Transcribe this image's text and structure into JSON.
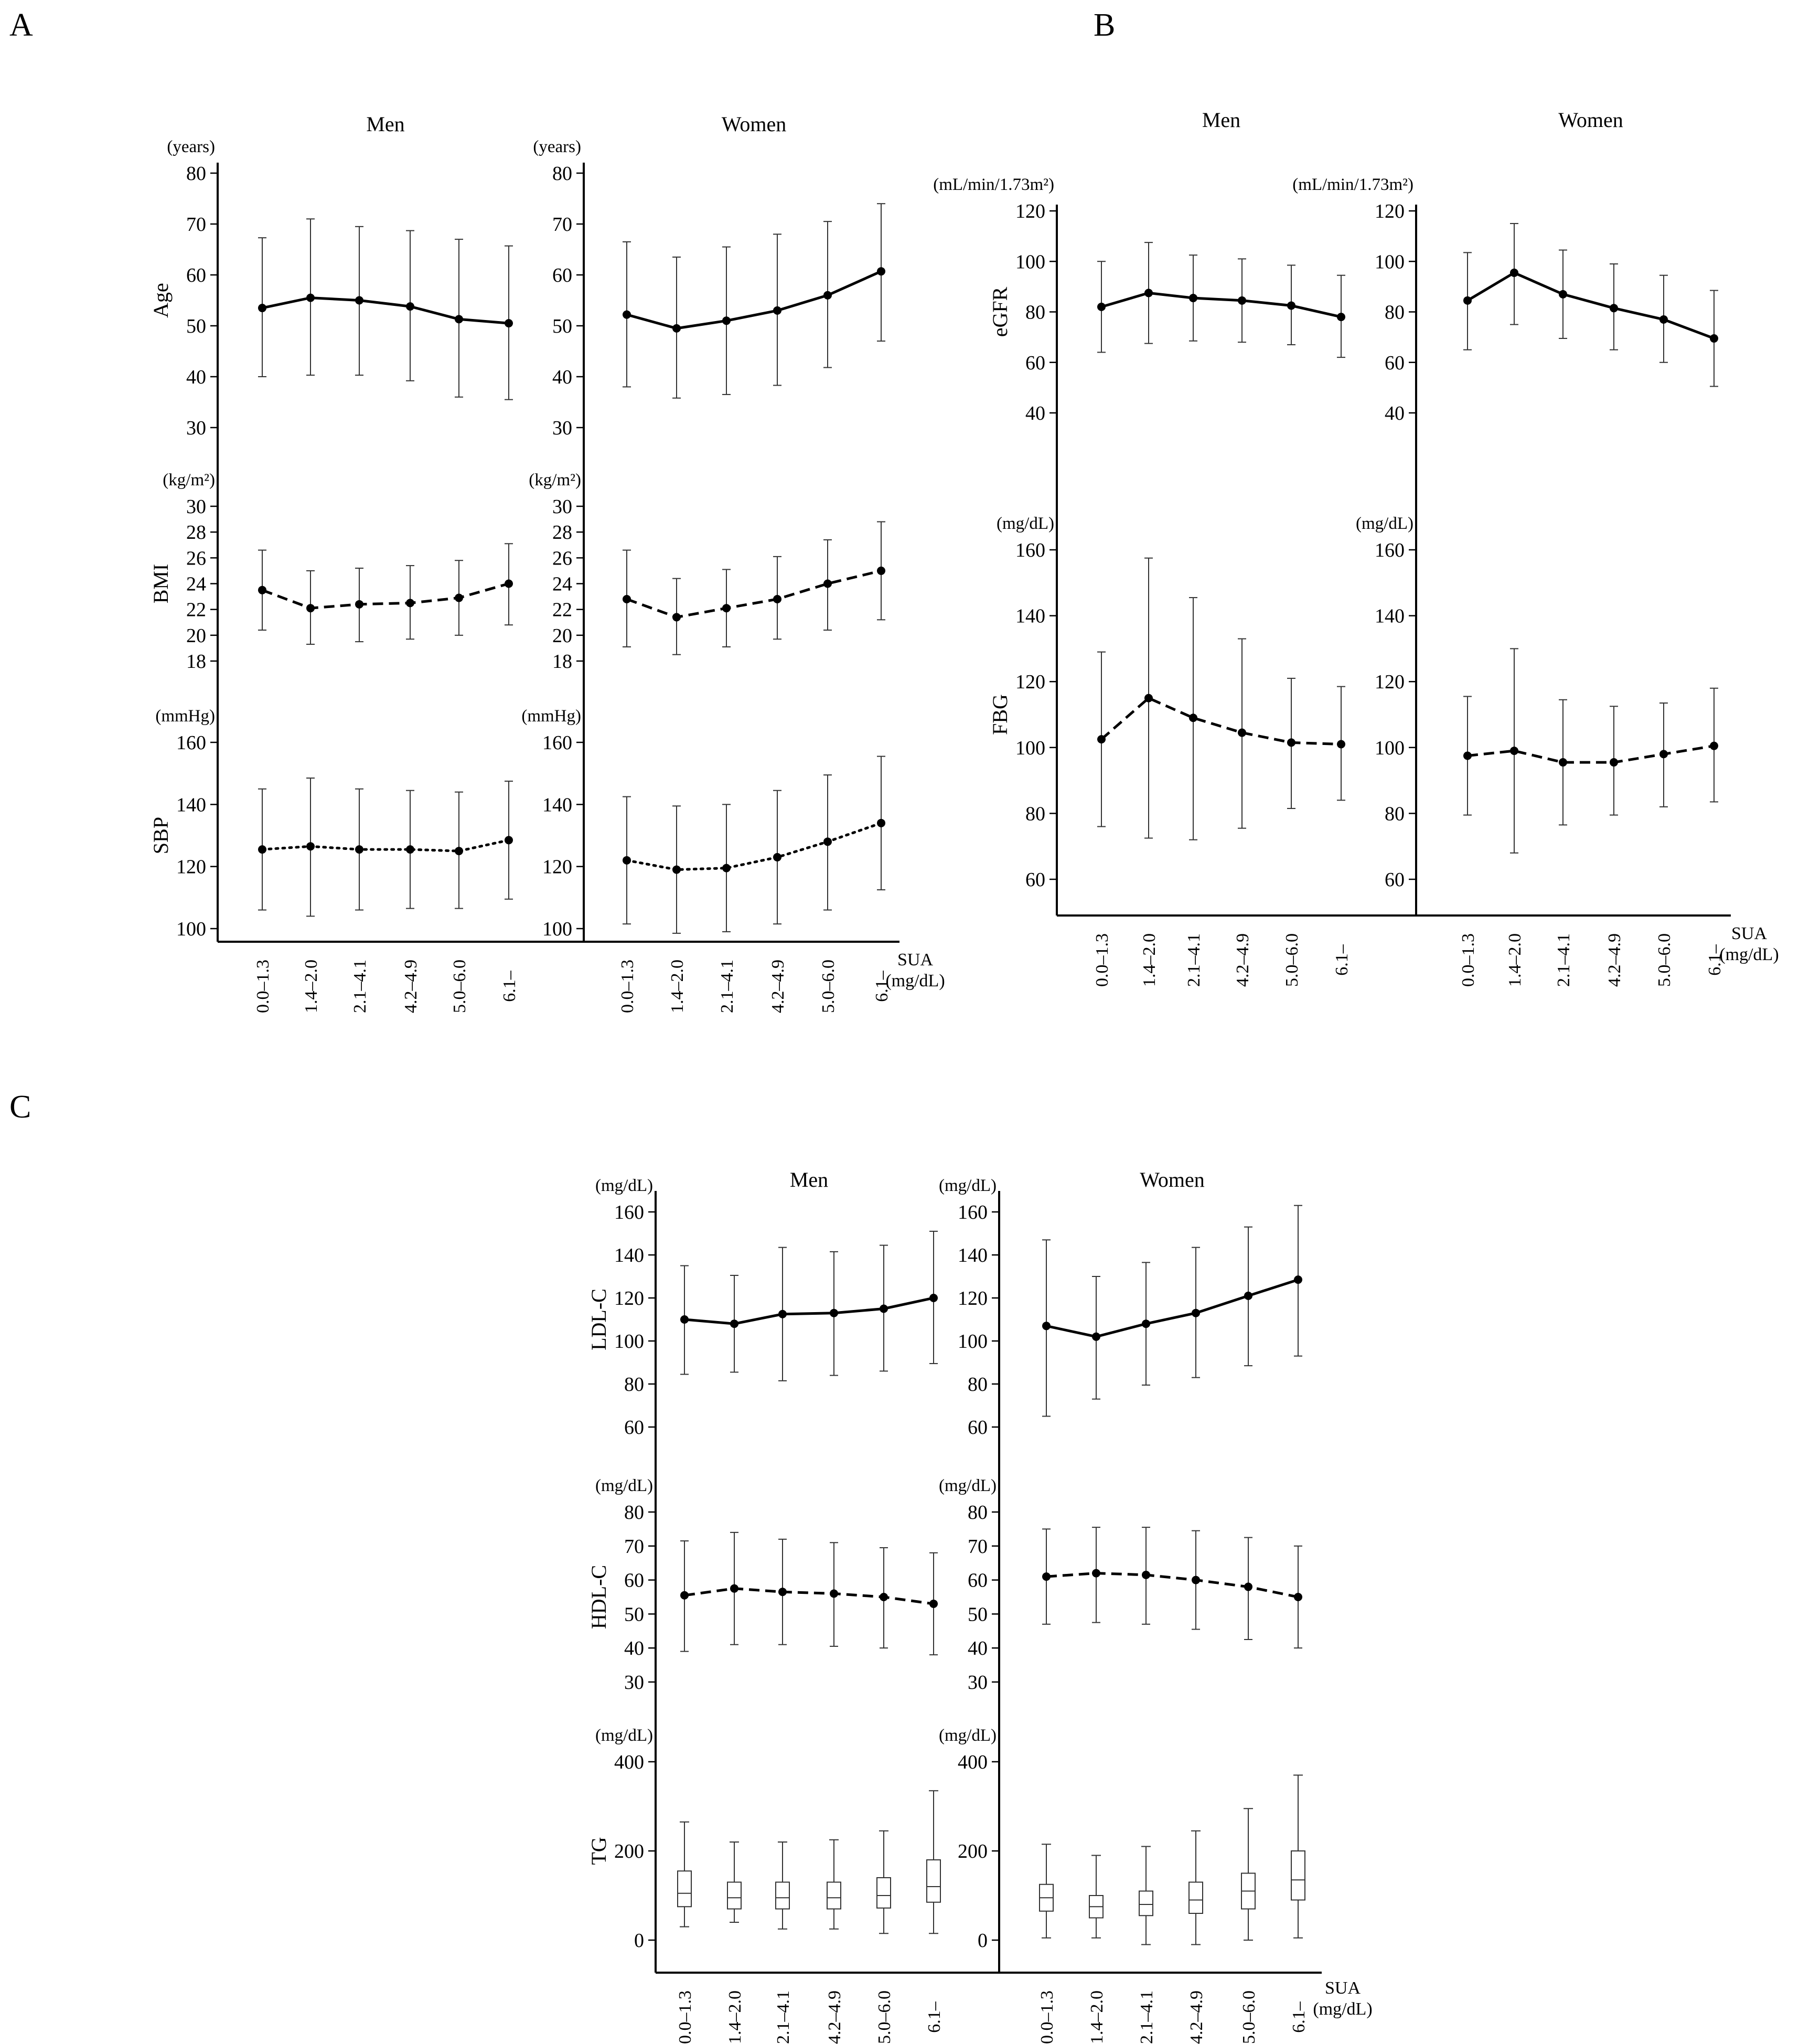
{
  "figure": {
    "panel_labels": [
      "A",
      "B",
      "C"
    ],
    "group_labels": [
      "Men",
      "Women"
    ],
    "x_categories": [
      "0.0–1.3",
      "1.4–2.0",
      "2.1–4.1",
      "4.2–4.9",
      "5.0–6.0",
      "6.1–"
    ],
    "x_axis_label_line1": "SUA",
    "x_axis_label_line2": "(mg/dL)"
  },
  "chart_data": [
    {
      "id": "age",
      "panel": "A",
      "type": "line",
      "variable": "Age",
      "unit": "(years)",
      "ylim": [
        30,
        80
      ],
      "yticks": [
        30,
        40,
        50,
        60,
        70,
        80
      ],
      "line_style": "solid",
      "series": [
        {
          "name": "Men",
          "values": [
            53.5,
            55.5,
            55,
            53.8,
            51.3,
            50.5
          ],
          "lower": [
            40,
            40.3,
            40.3,
            39.2,
            36,
            35.5
          ],
          "upper": [
            67.3,
            71,
            69.5,
            68.7,
            67,
            65.7
          ]
        },
        {
          "name": "Women",
          "values": [
            52.2,
            49.5,
            51,
            53,
            56,
            60.7
          ],
          "lower": [
            38,
            35.8,
            36.5,
            38.3,
            41.8,
            47
          ],
          "upper": [
            66.5,
            63.5,
            65.5,
            68,
            70.5,
            74
          ]
        }
      ]
    },
    {
      "id": "bmi",
      "panel": "A",
      "type": "line",
      "variable": "BMI",
      "unit": "(kg/m²)",
      "ylim": [
        18,
        30
      ],
      "yticks": [
        18,
        20,
        22,
        24,
        26,
        28,
        30
      ],
      "line_style": "dashed",
      "series": [
        {
          "name": "Men",
          "values": [
            23.5,
            22.1,
            22.4,
            22.5,
            22.9,
            24
          ],
          "lower": [
            20.4,
            19.3,
            19.5,
            19.7,
            20,
            20.8
          ],
          "upper": [
            26.6,
            25,
            25.2,
            25.4,
            25.8,
            27.1
          ]
        },
        {
          "name": "Women",
          "values": [
            22.8,
            21.4,
            22.1,
            22.8,
            24,
            25
          ],
          "lower": [
            19.1,
            18.5,
            19.1,
            19.7,
            20.4,
            21.2
          ],
          "upper": [
            26.6,
            24.4,
            25.1,
            26.1,
            27.4,
            28.8
          ]
        }
      ]
    },
    {
      "id": "sbp",
      "panel": "A",
      "type": "line",
      "variable": "SBP",
      "unit": "(mmHg)",
      "ylim": [
        90,
        160
      ],
      "yticks": [
        100,
        120,
        140,
        160
      ],
      "line_style": "dotted",
      "series": [
        {
          "name": "Men",
          "values": [
            125.5,
            126.5,
            125.5,
            125.5,
            125,
            128.5
          ],
          "lower": [
            106,
            104,
            106,
            106.5,
            106.5,
            109.5
          ],
          "upper": [
            145,
            148.5,
            145,
            144.5,
            144,
            147.5
          ]
        },
        {
          "name": "Women",
          "values": [
            122,
            119,
            119.5,
            123,
            128,
            134
          ],
          "lower": [
            101.5,
            98.5,
            99,
            101.5,
            106,
            112.5
          ],
          "upper": [
            142.5,
            139.5,
            140,
            144.5,
            149.5,
            155.5
          ]
        }
      ]
    },
    {
      "id": "egfr",
      "panel": "B",
      "type": "line",
      "variable": "eGFR",
      "unit": "(mL/min/1.73m²)",
      "ylim": [
        40,
        120
      ],
      "yticks": [
        40,
        60,
        80,
        100,
        120
      ],
      "line_style": "solid",
      "series": [
        {
          "name": "Men",
          "values": [
            82,
            87.5,
            85.5,
            84.5,
            82.5,
            78
          ],
          "lower": [
            64,
            67.5,
            68.5,
            68,
            67,
            62
          ],
          "upper": [
            100,
            107.5,
            102.5,
            101,
            98.5,
            94.5
          ]
        },
        {
          "name": "Women",
          "values": [
            84.5,
            95.5,
            87,
            81.5,
            77,
            69.5
          ],
          "lower": [
            65,
            75,
            69.5,
            65,
            60,
            50.5
          ],
          "upper": [
            103.5,
            115,
            104.5,
            99,
            94.5,
            88.5
          ]
        }
      ]
    },
    {
      "id": "fbg",
      "panel": "B",
      "type": "line",
      "variable": "FBG",
      "unit": "(mg/dL)",
      "ylim": [
        50,
        160
      ],
      "yticks": [
        60,
        80,
        100,
        120,
        140,
        160
      ],
      "line_style": "dashed",
      "series": [
        {
          "name": "Men",
          "values": [
            102.5,
            115,
            109,
            104.5,
            101.5,
            101
          ],
          "lower": [
            76,
            72.5,
            72,
            75.5,
            81.5,
            84
          ],
          "upper": [
            129,
            157.5,
            145.5,
            133,
            121,
            118.5
          ]
        },
        {
          "name": "Women",
          "values": [
            97.5,
            99,
            95.5,
            95.5,
            98,
            100.5
          ],
          "lower": [
            79.5,
            68,
            76.5,
            79.5,
            82,
            83.5
          ],
          "upper": [
            115.5,
            130,
            114.5,
            112.5,
            113.5,
            118
          ]
        }
      ]
    },
    {
      "id": "ldl",
      "panel": "C",
      "type": "line",
      "variable": "LDL-C",
      "unit": "(mg/dL)",
      "ylim": [
        60,
        160
      ],
      "yticks": [
        60,
        80,
        100,
        120,
        140,
        160
      ],
      "line_style": "solid",
      "series": [
        {
          "name": "Men",
          "values": [
            110,
            108,
            112.5,
            113,
            115,
            120
          ],
          "lower": [
            84.5,
            85.5,
            81.5,
            84,
            86,
            89.5
          ],
          "upper": [
            135,
            130.5,
            143.5,
            141.5,
            144.5,
            151
          ]
        },
        {
          "name": "Women",
          "values": [
            107,
            102,
            108,
            113,
            121,
            128.5
          ],
          "lower": [
            65,
            73,
            79.5,
            83,
            88.5,
            93
          ],
          "upper": [
            147,
            130,
            136.5,
            143.5,
            153,
            163
          ]
        }
      ]
    },
    {
      "id": "hdl",
      "panel": "C",
      "type": "line",
      "variable": "HDL-C",
      "unit": "(mg/dL)",
      "ylim": [
        30,
        80
      ],
      "yticks": [
        30,
        40,
        50,
        60,
        70,
        80
      ],
      "line_style": "dashed",
      "series": [
        {
          "name": "Men",
          "values": [
            55.5,
            57.5,
            56.5,
            56,
            55,
            53
          ],
          "lower": [
            39,
            41,
            41,
            40.5,
            40,
            38
          ],
          "upper": [
            71.5,
            74,
            72,
            71,
            69.5,
            68
          ]
        },
        {
          "name": "Women",
          "values": [
            61,
            62,
            61.5,
            60,
            58,
            55
          ],
          "lower": [
            47,
            47.5,
            47,
            45.5,
            42.5,
            40
          ],
          "upper": [
            75,
            75.5,
            75.5,
            74.5,
            72.5,
            70
          ]
        }
      ]
    },
    {
      "id": "tg",
      "panel": "C",
      "type": "box",
      "variable": "TG",
      "unit": "(mg/dL)",
      "ylim": [
        -30,
        420
      ],
      "yticks": [
        0,
        200,
        400
      ],
      "series": [
        {
          "name": "Men",
          "median": [
            105,
            95,
            95,
            95,
            100,
            120
          ],
          "q1": [
            75,
            70,
            70,
            70,
            72,
            85
          ],
          "q3": [
            155,
            130,
            130,
            130,
            140,
            180
          ],
          "min": [
            30,
            40,
            25,
            25,
            15,
            15
          ],
          "max": [
            265,
            220,
            220,
            225,
            245,
            335
          ]
        },
        {
          "name": "Women",
          "median": [
            95,
            75,
            80,
            90,
            110,
            135
          ],
          "q1": [
            65,
            50,
            55,
            60,
            70,
            90
          ],
          "q3": [
            125,
            100,
            110,
            130,
            150,
            200
          ],
          "min": [
            5,
            5,
            -10,
            -10,
            0,
            5
          ],
          "max": [
            215,
            190,
            210,
            245,
            295,
            370
          ]
        }
      ]
    }
  ]
}
